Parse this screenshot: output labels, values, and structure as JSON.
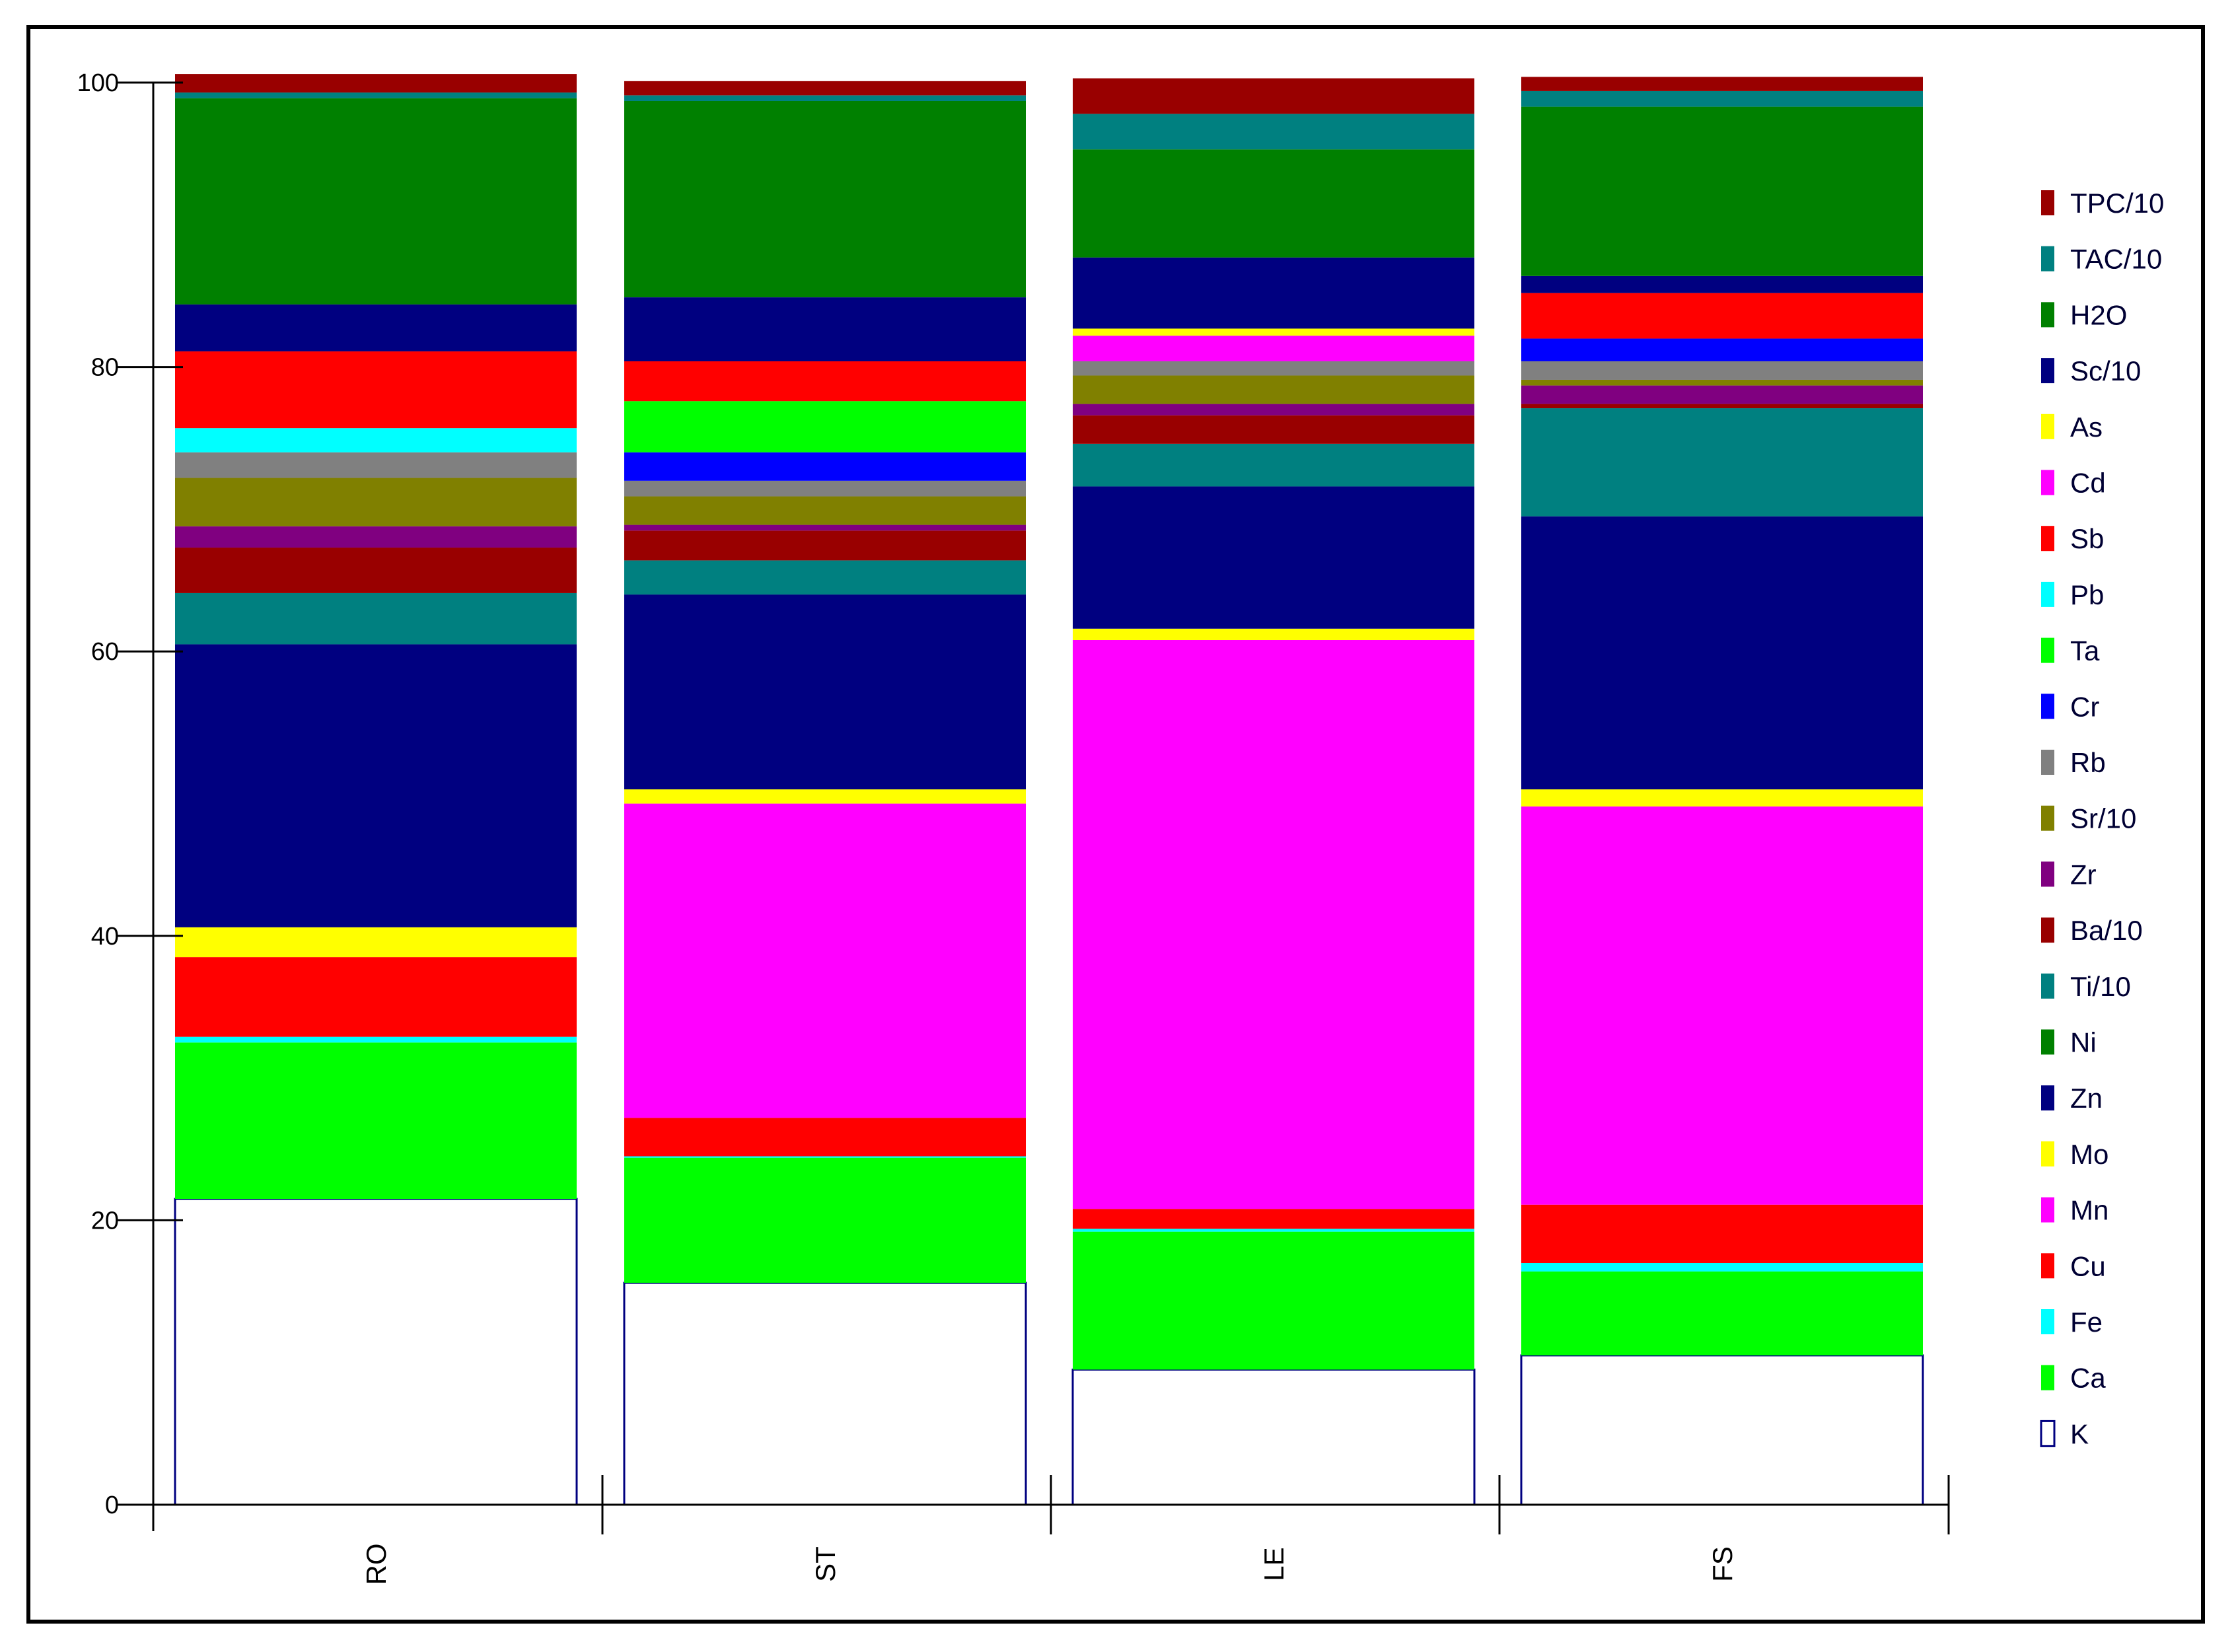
{
  "chart_data": {
    "type": "bar",
    "stacked": true,
    "percent_stacked": true,
    "title": "",
    "xlabel": "",
    "ylabel": "",
    "ylim": [
      0,
      100
    ],
    "yticks": [
      "0",
      "20",
      "40",
      "60",
      "80",
      "100"
    ],
    "ytick_values": [
      0,
      20,
      40,
      60,
      80,
      100
    ],
    "categories": [
      "RO",
      "ST",
      "LE",
      "FS"
    ],
    "legend_position": "right",
    "series": [
      {
        "name": "K",
        "color": "#FFFFFF",
        "values": [
          21.5,
          15.6,
          9.5,
          10.5
        ]
      },
      {
        "name": "Ca",
        "color": "#00FF00",
        "values": [
          11.0,
          8.8,
          9.7,
          5.9
        ]
      },
      {
        "name": "Fe",
        "color": "#00FFFF",
        "values": [
          0.4,
          0.1,
          0.2,
          0.6
        ]
      },
      {
        "name": "Cu",
        "color": "#FF0000",
        "values": [
          5.6,
          2.7,
          1.4,
          4.1
        ]
      },
      {
        "name": "Mn",
        "color": "#FF00FF",
        "values": [
          0.0,
          22.1,
          40.0,
          28.0
        ]
      },
      {
        "name": "Mo",
        "color": "#FFFF00",
        "values": [
          2.1,
          1.0,
          0.8,
          1.2
        ]
      },
      {
        "name": "Zn",
        "color": "#000080",
        "values": [
          19.9,
          13.7,
          10.0,
          19.2
        ]
      },
      {
        "name": "Ni",
        "color": "#008000",
        "values": [
          0.0,
          0.0,
          0.0,
          0.0
        ]
      },
      {
        "name": "Ti/10",
        "color": "#008080",
        "values": [
          3.6,
          2.4,
          3.0,
          7.6
        ]
      },
      {
        "name": "Ba/10",
        "color": "#990000",
        "values": [
          3.2,
          2.1,
          2.0,
          0.3
        ]
      },
      {
        "name": "Zr",
        "color": "#800080",
        "values": [
          1.5,
          0.4,
          0.8,
          1.3
        ]
      },
      {
        "name": "Sr/10",
        "color": "#808000",
        "values": [
          3.4,
          2.0,
          2.0,
          0.4
        ]
      },
      {
        "name": "Rb",
        "color": "#808080",
        "values": [
          1.8,
          1.1,
          1.0,
          1.3
        ]
      },
      {
        "name": "Cr",
        "color": "#0000FF",
        "values": [
          0.0,
          2.0,
          0.0,
          1.6
        ]
      },
      {
        "name": "Ta",
        "color": "#00FF00",
        "values": [
          0.0,
          3.6,
          0.0,
          0.0
        ]
      },
      {
        "name": "Pb",
        "color": "#00FFFF",
        "values": [
          1.7,
          0.0,
          0.0,
          0.0
        ]
      },
      {
        "name": "Sb",
        "color": "#FF0000",
        "values": [
          5.4,
          2.8,
          0.0,
          3.2
        ]
      },
      {
        "name": "Cd",
        "color": "#FF00FF",
        "values": [
          0.0,
          0.0,
          1.8,
          0.0
        ]
      },
      {
        "name": "As",
        "color": "#FFFF00",
        "values": [
          0.0,
          0.0,
          0.5,
          0.0
        ]
      },
      {
        "name": "Sc/10",
        "color": "#000080",
        "values": [
          3.3,
          4.5,
          5.0,
          1.2
        ]
      },
      {
        "name": "H2O",
        "color": "#008000",
        "values": [
          14.5,
          13.8,
          7.6,
          11.9
        ]
      },
      {
        "name": "TAC/10",
        "color": "#008080",
        "values": [
          0.4,
          0.4,
          2.5,
          1.1
        ]
      },
      {
        "name": "TPC/10",
        "color": "#990000",
        "values": [
          1.3,
          1.0,
          2.5,
          1.0
        ]
      }
    ]
  }
}
